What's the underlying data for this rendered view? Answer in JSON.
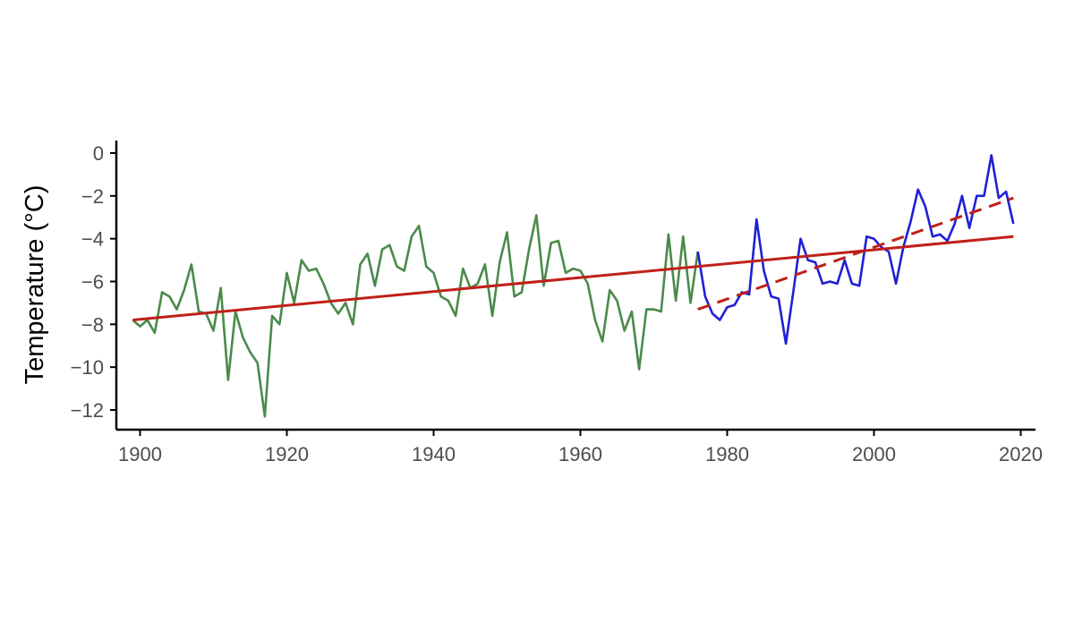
{
  "chart_data": {
    "type": "line",
    "title": "",
    "xlabel": "",
    "ylabel": "Temperature (°C)",
    "xlim": [
      1896,
      2022
    ],
    "ylim": [
      -13,
      0.5
    ],
    "x_ticks": [
      1900,
      1920,
      1940,
      1960,
      1980,
      2000,
      2020
    ],
    "y_ticks": [
      0,
      -2,
      -4,
      -6,
      -8,
      -10,
      -12
    ],
    "grid": false,
    "legend": "none",
    "colors": {
      "early_series": "#4a8a4a",
      "late_series": "#1f1fd6",
      "trend": "#c0201a",
      "axis": "#000000",
      "tick_text": "#4d4d4d"
    },
    "series": [
      {
        "style": "solid",
        "color": "#4a8a4a",
        "x": [
          1899,
          1900,
          1901,
          1902,
          1903,
          1904,
          1905,
          1906,
          1907,
          1908,
          1909,
          1910,
          1911,
          1912,
          1913,
          1914,
          1915,
          1916,
          1917,
          1918,
          1919,
          1920,
          1921,
          1922,
          1923,
          1924,
          1925,
          1926,
          1927,
          1928,
          1929,
          1930,
          1931,
          1932,
          1933,
          1934,
          1935,
          1936,
          1937,
          1938,
          1939,
          1940,
          1941,
          1942,
          1943,
          1944,
          1945,
          1946,
          1947,
          1948,
          1949,
          1950,
          1951,
          1952,
          1953,
          1954,
          1955,
          1956,
          1957,
          1958,
          1959,
          1960,
          1961,
          1962,
          1963,
          1964,
          1965,
          1966,
          1967,
          1968,
          1969,
          1970,
          1971,
          1972,
          1973,
          1974,
          1975,
          1976
        ],
        "y": [
          -7.8,
          -8.1,
          -7.8,
          -8.4,
          -6.5,
          -6.7,
          -7.3,
          -6.4,
          -5.2,
          -7.4,
          -7.5,
          -8.3,
          -6.3,
          -10.6,
          -7.4,
          -8.6,
          -9.3,
          -9.8,
          -12.3,
          -7.6,
          -8.0,
          -5.6,
          -7.0,
          -5.0,
          -5.5,
          -5.4,
          -6.1,
          -7.0,
          -7.5,
          -7.0,
          -8.0,
          -5.2,
          -4.7,
          -6.2,
          -4.5,
          -4.3,
          -5.3,
          -5.5,
          -3.9,
          -3.4,
          -5.3,
          -5.6,
          -6.7,
          -6.9,
          -7.6,
          -5.4,
          -6.3,
          -6.1,
          -5.2,
          -7.6,
          -5.1,
          -3.7,
          -6.7,
          -6.5,
          -4.5,
          -2.9,
          -6.2,
          -4.2,
          -4.1,
          -5.6,
          -5.4,
          -5.5,
          -6.1,
          -7.8,
          -8.8,
          -6.4,
          -6.9,
          -8.3,
          -7.4,
          -10.1,
          -7.3,
          -7.3,
          -7.4,
          -3.8,
          -6.9,
          -3.9,
          -7.0,
          -4.6
        ]
      },
      {
        "style": "solid",
        "color": "#1f1fd6",
        "x": [
          1976,
          1977,
          1978,
          1979,
          1980,
          1981,
          1982,
          1983,
          1984,
          1985,
          1986,
          1987,
          1988,
          1989,
          1990,
          1991,
          1992,
          1993,
          1994,
          1995,
          1996,
          1997,
          1998,
          1999,
          2000,
          2001,
          2002,
          2003,
          2004,
          2005,
          2006,
          2007,
          2008,
          2009,
          2010,
          2011,
          2012,
          2013,
          2014,
          2015,
          2016,
          2017,
          2018,
          2019
        ],
        "y": [
          -4.6,
          -6.7,
          -7.5,
          -7.8,
          -7.2,
          -7.1,
          -6.5,
          -6.6,
          -3.1,
          -5.5,
          -6.7,
          -6.8,
          -8.9,
          -6.5,
          -4.0,
          -5.0,
          -5.1,
          -6.1,
          -6.0,
          -6.1,
          -5.0,
          -6.1,
          -6.2,
          -3.9,
          -4.0,
          -4.4,
          -4.6,
          -6.1,
          -4.4,
          -3.2,
          -1.7,
          -2.5,
          -3.9,
          -3.8,
          -4.1,
          -3.3,
          -2.0,
          -3.5,
          -2.0,
          -2.0,
          -0.1,
          -2.1,
          -1.8,
          -3.3
        ]
      },
      {
        "style": "solid",
        "color": "#c0201a",
        "x": [
          1899,
          2019
        ],
        "y": [
          -7.8,
          -3.9
        ]
      },
      {
        "style": "dashed",
        "color": "#c0201a",
        "x": [
          1976,
          2019
        ],
        "y": [
          -7.3,
          -2.1
        ]
      }
    ]
  }
}
